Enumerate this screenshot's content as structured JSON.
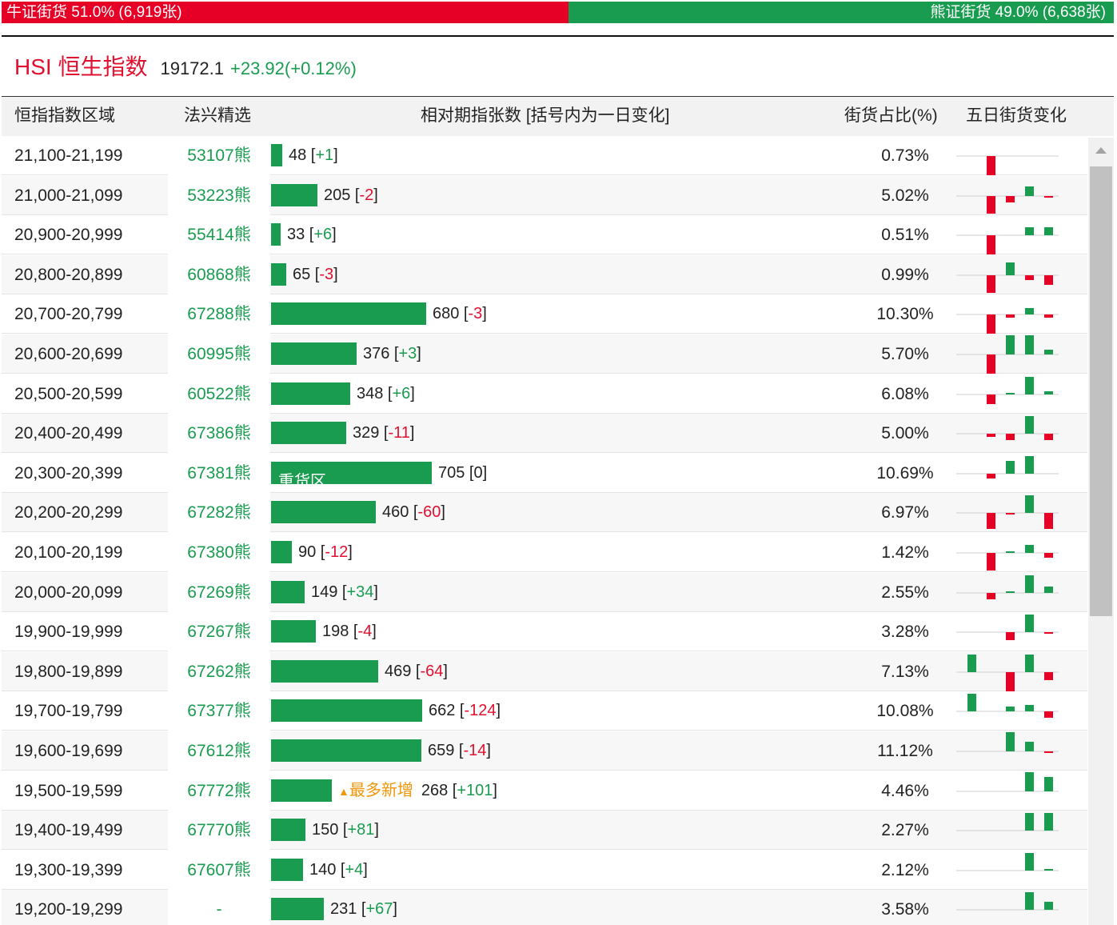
{
  "summary": {
    "bull_label": "牛证街货 51.0% (6,919张)",
    "bear_label": "熊证街货 49.0% (6,638张)",
    "bull_share": 0.51,
    "bear_share": 0.49
  },
  "index": {
    "name": "HSI 恒生指数",
    "price": "19172.1",
    "change": "+23.92(+0.12%)"
  },
  "headers": {
    "range": "恒指指数区域",
    "issuer": "法兴精选",
    "count": "相对期指张数 [括号内为一日变化]",
    "share": "街货占比(%)",
    "trend": "五日街货变化"
  },
  "colors": {
    "bull": "#e60026",
    "bear": "#1a9c50",
    "highlight": "#f0960a"
  },
  "icons": {
    "most_added": "triangle-up-icon",
    "scroll_up": "arrow-up-icon"
  },
  "rows": [
    {
      "range": "21,100-21,199",
      "code": "53107熊",
      "count": 48,
      "open": "48 [",
      "chg": "+1",
      "close": "]",
      "pct": "0.73%",
      "trend": [
        0,
        -12,
        0,
        0,
        0
      ]
    },
    {
      "range": "21,000-21,099",
      "code": "53223熊",
      "count": 205,
      "open": "205 [",
      "chg": "-2",
      "close": "]",
      "pct": "5.02%",
      "trend": [
        0,
        -11,
        -4,
        6,
        -1
      ]
    },
    {
      "range": "20,900-20,999",
      "code": "55414熊",
      "count": 33,
      "open": "33 [",
      "chg": "+6",
      "close": "]",
      "pct": "0.51%",
      "trend": [
        0,
        -12,
        0,
        5,
        5
      ]
    },
    {
      "range": "20,800-20,899",
      "code": "60868熊",
      "count": 65,
      "open": "65 [",
      "chg": "-3",
      "close": "]",
      "pct": "0.99%",
      "trend": [
        0,
        -11,
        8,
        -3,
        -6
      ]
    },
    {
      "range": "20,700-20,799",
      "code": "67288熊",
      "count": 680,
      "open": "680 [",
      "chg": "-3",
      "close": "]",
      "pct": "10.30%",
      "trend": [
        0,
        -12,
        -2,
        4,
        -2
      ]
    },
    {
      "range": "20,600-20,699",
      "code": "60995熊",
      "count": 376,
      "open": "376 [",
      "chg": "+3",
      "close": "]",
      "pct": "5.70%",
      "trend": [
        0,
        -12,
        12,
        12,
        3
      ]
    },
    {
      "range": "20,500-20,599",
      "code": "60522熊",
      "count": 348,
      "open": "348 [",
      "chg": "+6",
      "close": "]",
      "pct": "6.08%",
      "trend": [
        0,
        -6,
        1,
        11,
        2
      ]
    },
    {
      "range": "20,400-20,499",
      "code": "67386熊",
      "count": 329,
      "open": "329 [",
      "chg": "-11",
      "close": "]",
      "pct": "5.00%",
      "trend": [
        0,
        -2,
        -4,
        11,
        -4
      ]
    },
    {
      "range": "20,300-20,399",
      "code": "67381熊",
      "count": 705,
      "open": "705 [",
      "chg": "0",
      "close": "]",
      "pct": "10.69%",
      "trend": [
        0,
        -3,
        8,
        11,
        0
      ],
      "heavy": "重货区"
    },
    {
      "range": "20,200-20,299",
      "code": "67282熊",
      "count": 460,
      "open": "460 [",
      "chg": "-60",
      "close": "]",
      "pct": "6.97%",
      "trend": [
        0,
        -10,
        -1,
        11,
        -10
      ]
    },
    {
      "range": "20,100-20,199",
      "code": "67380熊",
      "count": 90,
      "open": "90 [",
      "chg": "-12",
      "close": "]",
      "pct": "1.42%",
      "trend": [
        0,
        -11,
        1,
        5,
        -3
      ]
    },
    {
      "range": "20,000-20,099",
      "code": "67269熊",
      "count": 149,
      "open": "149 [",
      "chg": "+34",
      "close": "]",
      "pct": "2.55%",
      "trend": [
        0,
        -4,
        1,
        11,
        4
      ]
    },
    {
      "range": "19,900-19,999",
      "code": "67267熊",
      "count": 198,
      "open": "198 [",
      "chg": "-4",
      "close": "]",
      "pct": "3.28%",
      "trend": [
        0,
        0,
        -5,
        11,
        -1
      ]
    },
    {
      "range": "19,800-19,899",
      "code": "67262熊",
      "count": 469,
      "open": "469 [",
      "chg": "-64",
      "close": "]",
      "pct": "7.13%",
      "trend": [
        11,
        0,
        -12,
        11,
        -5
      ]
    },
    {
      "range": "19,700-19,799",
      "code": "67377熊",
      "count": 662,
      "open": "662 [",
      "chg": "-124",
      "close": "]",
      "pct": "10.08%",
      "trend": [
        11,
        0,
        3,
        4,
        -4
      ]
    },
    {
      "range": "19,600-19,699",
      "code": "67612熊",
      "count": 659,
      "open": "659 [",
      "chg": "-14",
      "close": "]",
      "pct": "11.12%",
      "trend": [
        0,
        0,
        12,
        6,
        -1
      ]
    },
    {
      "range": "19,500-19,599",
      "code": "67772熊",
      "count": 268,
      "open": "268 [",
      "chg": "+101",
      "close": "]",
      "pct": "4.46%",
      "trend": [
        0,
        0,
        0,
        12,
        9
      ],
      "most": "最多新增"
    },
    {
      "range": "19,400-19,499",
      "code": "67770熊",
      "count": 150,
      "open": "150 [",
      "chg": "+81",
      "close": "]",
      "pct": "2.27%",
      "trend": [
        0,
        0,
        0,
        11,
        11
      ]
    },
    {
      "range": "19,300-19,399",
      "code": "67607熊",
      "count": 140,
      "open": "140 [",
      "chg": "+4",
      "close": "]",
      "pct": "2.12%",
      "trend": [
        0,
        0,
        0,
        11,
        1
      ]
    },
    {
      "range": "19,200-19,299",
      "code": "-",
      "count": 231,
      "open": "231 [",
      "chg": "+67",
      "close": "]",
      "pct": "3.58%",
      "trend": [
        0,
        0,
        0,
        11,
        5
      ]
    }
  ]
}
